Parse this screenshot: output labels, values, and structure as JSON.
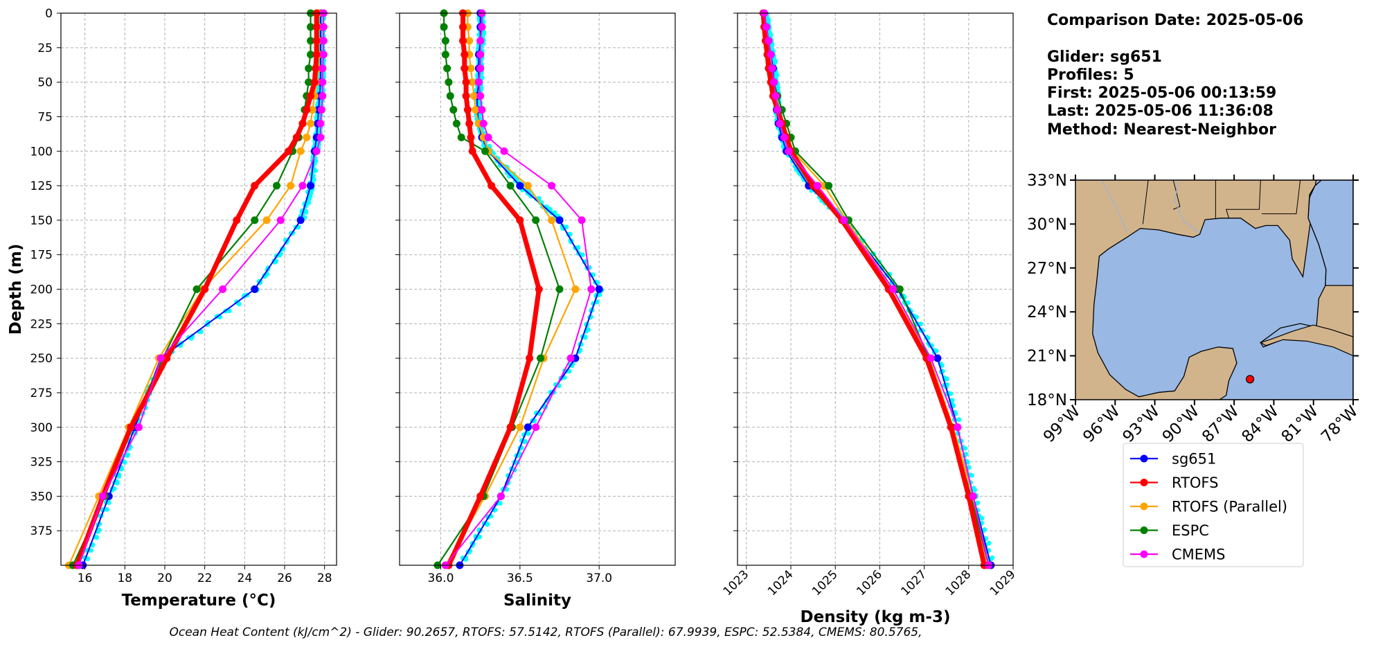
{
  "info": {
    "comparison_date": "Comparison Date: 2025-05-06",
    "glider": "Glider: sg651",
    "profiles": "Profiles: 5",
    "first": "First: 2025-05-06 00:13:59",
    "last": "Last: 2025-05-06 11:36:08",
    "method": "Method: Nearest-Neighbor"
  },
  "footer": "Ocean Heat Content (kJ/cm^2) - Glider: 90.2657,  RTOFS: 57.5142,  RTOFS (Parallel): 67.9939,  ESPC: 52.5384,  CMEMS: 80.5765,",
  "colors": {
    "sg651": "#0000ff",
    "RTOFS": "#ff0000",
    "RTOFS (Parallel)": "#ffa500",
    "ESPC": "#008000",
    "CMEMS": "#ff00ff",
    "glider_raw": "#00ffff",
    "land": "#d2b48c",
    "ocean": "#99b8e3",
    "marker": "#ff0000"
  },
  "legend": [
    "sg651",
    "RTOFS",
    "RTOFS (Parallel)",
    "ESPC",
    "CMEMS"
  ],
  "map": {
    "lat_ticks": [
      "18°N",
      "21°N",
      "24°N",
      "27°N",
      "30°N",
      "33°N"
    ],
    "lon_ticks": [
      "99°W",
      "96°W",
      "93°W",
      "90°W",
      "87°W",
      "84°W",
      "81°W",
      "78°W"
    ],
    "lon_range": [
      -99,
      -78
    ],
    "lat_range": [
      18,
      33
    ],
    "glider_position": {
      "lon": -85.8,
      "lat": 19.4
    }
  },
  "chart_data": [
    {
      "type": "line",
      "xlabel": "Temperature (°C)",
      "ylabel": "Depth (m)",
      "xlim": [
        14.8,
        28.6
      ],
      "ylim": [
        400,
        0
      ],
      "xticks": [
        16,
        18,
        20,
        22,
        24,
        26,
        28
      ],
      "yticks": [
        0,
        25,
        50,
        75,
        100,
        125,
        150,
        175,
        200,
        225,
        250,
        275,
        300,
        325,
        350,
        375
      ],
      "depth": [
        0,
        10,
        20,
        30,
        40,
        50,
        60,
        70,
        80,
        90,
        100,
        125,
        150,
        200,
        250,
        300,
        350,
        400
      ],
      "series": [
        {
          "name": "sg651",
          "values": [
            27.8,
            27.8,
            27.8,
            27.8,
            27.8,
            27.8,
            27.75,
            27.7,
            27.65,
            27.6,
            27.5,
            27.3,
            26.8,
            24.5,
            19.8,
            18.5,
            17.2,
            15.9
          ],
          "marker": true
        },
        {
          "name": "RTOFS",
          "values": [
            27.6,
            27.6,
            27.6,
            27.6,
            27.55,
            27.5,
            27.3,
            27.1,
            26.9,
            26.6,
            26.2,
            24.5,
            23.6,
            22.0,
            20.1,
            18.3,
            16.9,
            15.6
          ],
          "marker": true
        },
        {
          "name": "RTOFS (Parallel)",
          "values": [
            27.7,
            27.7,
            27.7,
            27.7,
            27.7,
            27.6,
            27.5,
            27.4,
            27.3,
            27.1,
            26.8,
            26.3,
            25.1,
            21.9,
            19.7,
            18.2,
            16.7,
            15.2
          ],
          "marker": true
        },
        {
          "name": "ESPC",
          "values": [
            27.3,
            27.3,
            27.3,
            27.3,
            27.2,
            27.2,
            27.1,
            27.0,
            26.9,
            26.7,
            26.4,
            25.6,
            24.5,
            21.6,
            19.9,
            18.3,
            17.0,
            15.4
          ],
          "marker": true
        },
        {
          "name": "CMEMS",
          "values": [
            27.95,
            27.95,
            27.95,
            27.95,
            27.9,
            27.9,
            27.9,
            27.85,
            27.8,
            27.8,
            27.6,
            26.9,
            25.8,
            22.9,
            19.8,
            18.7,
            16.9,
            15.7
          ],
          "marker": true
        }
      ]
    },
    {
      "type": "line",
      "xlabel": "Salinity",
      "xlim": [
        35.74,
        37.48
      ],
      "ylim": [
        400,
        0
      ],
      "xticks": [
        36.0,
        36.5,
        37.0
      ],
      "xticklabels": [
        "36.0",
        "36.5",
        "37.0"
      ],
      "depth": [
        0,
        10,
        20,
        30,
        40,
        50,
        60,
        70,
        80,
        90,
        100,
        125,
        150,
        200,
        250,
        300,
        350,
        400
      ],
      "series": [
        {
          "name": "sg651",
          "values": [
            36.25,
            36.25,
            36.25,
            36.24,
            36.24,
            36.24,
            36.23,
            36.23,
            36.24,
            36.26,
            36.3,
            36.5,
            36.75,
            37.0,
            36.85,
            36.55,
            36.38,
            36.12
          ],
          "marker": true
        },
        {
          "name": "RTOFS",
          "values": [
            36.14,
            36.14,
            36.14,
            36.15,
            36.15,
            36.16,
            36.16,
            36.17,
            36.18,
            36.19,
            36.2,
            36.32,
            36.5,
            36.62,
            36.56,
            36.44,
            36.25,
            36.05
          ],
          "marker": true
        },
        {
          "name": "RTOFS (Parallel)",
          "values": [
            36.17,
            36.17,
            36.18,
            36.18,
            36.19,
            36.2,
            36.21,
            36.22,
            36.24,
            36.27,
            36.3,
            36.55,
            36.7,
            36.85,
            36.65,
            36.5,
            36.28,
            36.03
          ],
          "marker": true
        },
        {
          "name": "ESPC",
          "values": [
            36.02,
            36.02,
            36.03,
            36.03,
            36.04,
            36.05,
            36.06,
            36.08,
            36.1,
            36.13,
            36.28,
            36.44,
            36.6,
            36.75,
            36.63,
            36.45,
            36.27,
            35.98
          ],
          "marker": true
        },
        {
          "name": "CMEMS",
          "values": [
            36.26,
            36.26,
            36.25,
            36.25,
            36.25,
            36.24,
            36.25,
            36.26,
            36.27,
            36.3,
            36.4,
            36.7,
            36.89,
            36.95,
            36.82,
            36.6,
            36.38,
            36.03
          ],
          "marker": true
        }
      ]
    },
    {
      "type": "line",
      "xlabel": "Density (kg m-3)",
      "xlim": [
        1022.8,
        1029.0
      ],
      "ylim": [
        400,
        0
      ],
      "xticks": [
        1023,
        1024,
        1025,
        1026,
        1027,
        1028,
        1029
      ],
      "depth": [
        0,
        10,
        20,
        30,
        40,
        50,
        60,
        70,
        80,
        90,
        100,
        125,
        150,
        200,
        250,
        300,
        350,
        400
      ],
      "series": [
        {
          "name": "sg651",
          "values": [
            1023.4,
            1023.45,
            1023.5,
            1023.55,
            1023.6,
            1023.62,
            1023.65,
            1023.68,
            1023.72,
            1023.8,
            1023.9,
            1024.4,
            1025.2,
            1026.4,
            1027.3,
            1027.75,
            1028.1,
            1028.5
          ],
          "marker": true
        },
        {
          "name": "RTOFS",
          "values": [
            1023.38,
            1023.4,
            1023.43,
            1023.47,
            1023.5,
            1023.55,
            1023.6,
            1023.7,
            1023.8,
            1023.9,
            1024.0,
            1024.5,
            1025.15,
            1026.2,
            1027.05,
            1027.6,
            1028.0,
            1028.35
          ],
          "marker": true
        },
        {
          "name": "RTOFS (Parallel)",
          "values": [
            1023.4,
            1023.42,
            1023.45,
            1023.5,
            1023.55,
            1023.6,
            1023.66,
            1023.74,
            1023.84,
            1023.94,
            1024.05,
            1024.75,
            1025.25,
            1026.3,
            1027.12,
            1027.65,
            1028.1,
            1028.4
          ],
          "marker": true
        },
        {
          "name": "ESPC",
          "values": [
            1023.38,
            1023.42,
            1023.46,
            1023.5,
            1023.55,
            1023.62,
            1023.7,
            1023.8,
            1023.9,
            1024.0,
            1024.1,
            1024.85,
            1025.3,
            1026.45,
            1027.1,
            1027.62,
            1028.05,
            1028.45
          ],
          "marker": true
        },
        {
          "name": "CMEMS",
          "values": [
            1023.4,
            1023.45,
            1023.5,
            1023.55,
            1023.58,
            1023.62,
            1023.66,
            1023.7,
            1023.75,
            1023.85,
            1023.95,
            1024.6,
            1025.2,
            1026.3,
            1027.15,
            1027.75,
            1028.1,
            1028.45
          ],
          "marker": true
        }
      ]
    }
  ]
}
